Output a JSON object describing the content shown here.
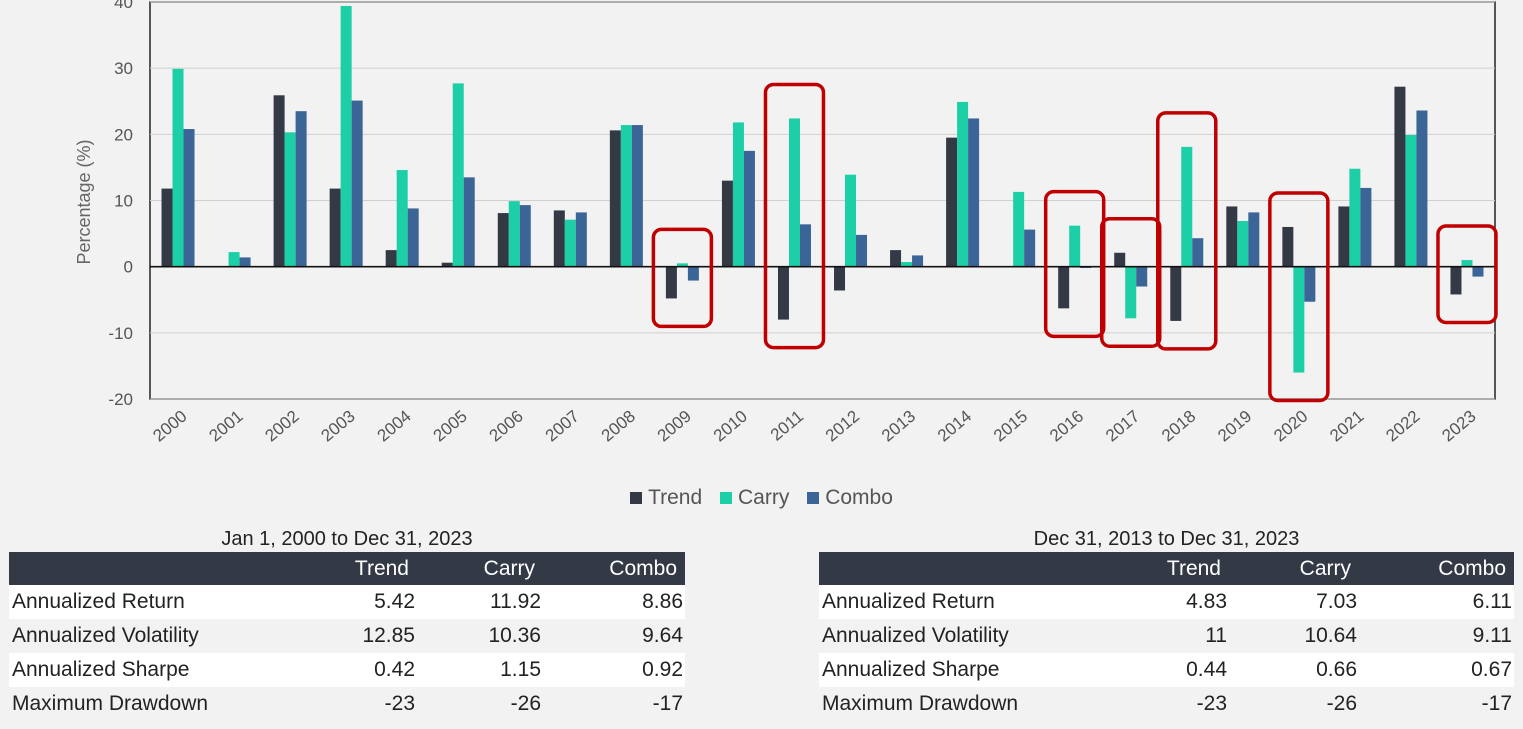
{
  "chart_data": {
    "type": "bar",
    "title": "",
    "xlabel": "",
    "ylabel": "Percentage (%)",
    "ylim": [
      -20,
      40
    ],
    "yticks": [
      -20,
      -10,
      0,
      10,
      20,
      30,
      40
    ],
    "categories": [
      "2000",
      "2001",
      "2002",
      "2003",
      "2004",
      "2005",
      "2006",
      "2007",
      "2008",
      "2009",
      "2010",
      "2011",
      "2012",
      "2013",
      "2014",
      "2015",
      "2016",
      "2017",
      "2018",
      "2019",
      "2020",
      "2021",
      "2022",
      "2023"
    ],
    "series": [
      {
        "name": "Trend",
        "color": "#333a46",
        "values": [
          11.8,
          0,
          25.9,
          11.8,
          2.5,
          0.6,
          8.1,
          8.5,
          20.6,
          -4.8,
          13.0,
          -8.0,
          -3.6,
          2.5,
          19.5,
          0,
          -6.3,
          2.1,
          -8.2,
          9.1,
          6.0,
          9.1,
          27.2,
          -4.2
        ]
      },
      {
        "name": "Carry",
        "color": "#1ccfa6",
        "values": [
          29.9,
          2.2,
          20.3,
          39.4,
          14.6,
          27.7,
          9.9,
          7.1,
          21.4,
          0.5,
          21.8,
          22.4,
          13.9,
          0.7,
          24.9,
          11.3,
          6.2,
          -7.8,
          18.1,
          6.9,
          -16.0,
          14.8,
          19.9,
          1.0
        ]
      },
      {
        "name": "Combo",
        "color": "#3b6596",
        "values": [
          20.8,
          1.4,
          23.5,
          25.1,
          8.8,
          13.5,
          9.3,
          8.2,
          21.4,
          -2.1,
          17.5,
          6.4,
          4.8,
          1.7,
          22.4,
          5.6,
          -0.2,
          -3.0,
          4.3,
          8.2,
          -5.3,
          11.9,
          23.6,
          -1.5
        ]
      }
    ],
    "highlighted_years": [
      "2009",
      "2011",
      "2016",
      "2017",
      "2018",
      "2020",
      "2023"
    ],
    "highlight_color": "#c00000",
    "legend_position": "bottom",
    "grid": true
  },
  "tables": [
    {
      "title": "Jan 1, 2000 to Dec 31, 2023",
      "columns": [
        "",
        "Trend",
        "Carry",
        "Combo"
      ],
      "rows": [
        {
          "label": "Annualized Return",
          "values": [
            "5.42",
            "11.92",
            "8.86"
          ]
        },
        {
          "label": "Annualized Volatility",
          "values": [
            "12.85",
            "10.36",
            "9.64"
          ]
        },
        {
          "label": "Annualized Sharpe",
          "values": [
            "0.42",
            "1.15",
            "0.92"
          ]
        },
        {
          "label": "Maximum Drawdown",
          "values": [
            "-23",
            "-26",
            "-17"
          ]
        }
      ]
    },
    {
      "title": "Dec 31, 2013 to Dec 31, 2023",
      "columns": [
        "",
        "Trend",
        "Carry",
        "Combo"
      ],
      "rows": [
        {
          "label": "Annualized Return",
          "values": [
            "4.83",
            "7.03",
            "6.11"
          ]
        },
        {
          "label": "Annualized Volatility",
          "values": [
            "11",
            "10.64",
            "9.11"
          ]
        },
        {
          "label": "Annualized Sharpe",
          "values": [
            "0.44",
            "0.66",
            "0.67"
          ]
        },
        {
          "label": "Maximum Drawdown",
          "values": [
            "-23",
            "-26",
            "-17"
          ]
        }
      ]
    }
  ]
}
